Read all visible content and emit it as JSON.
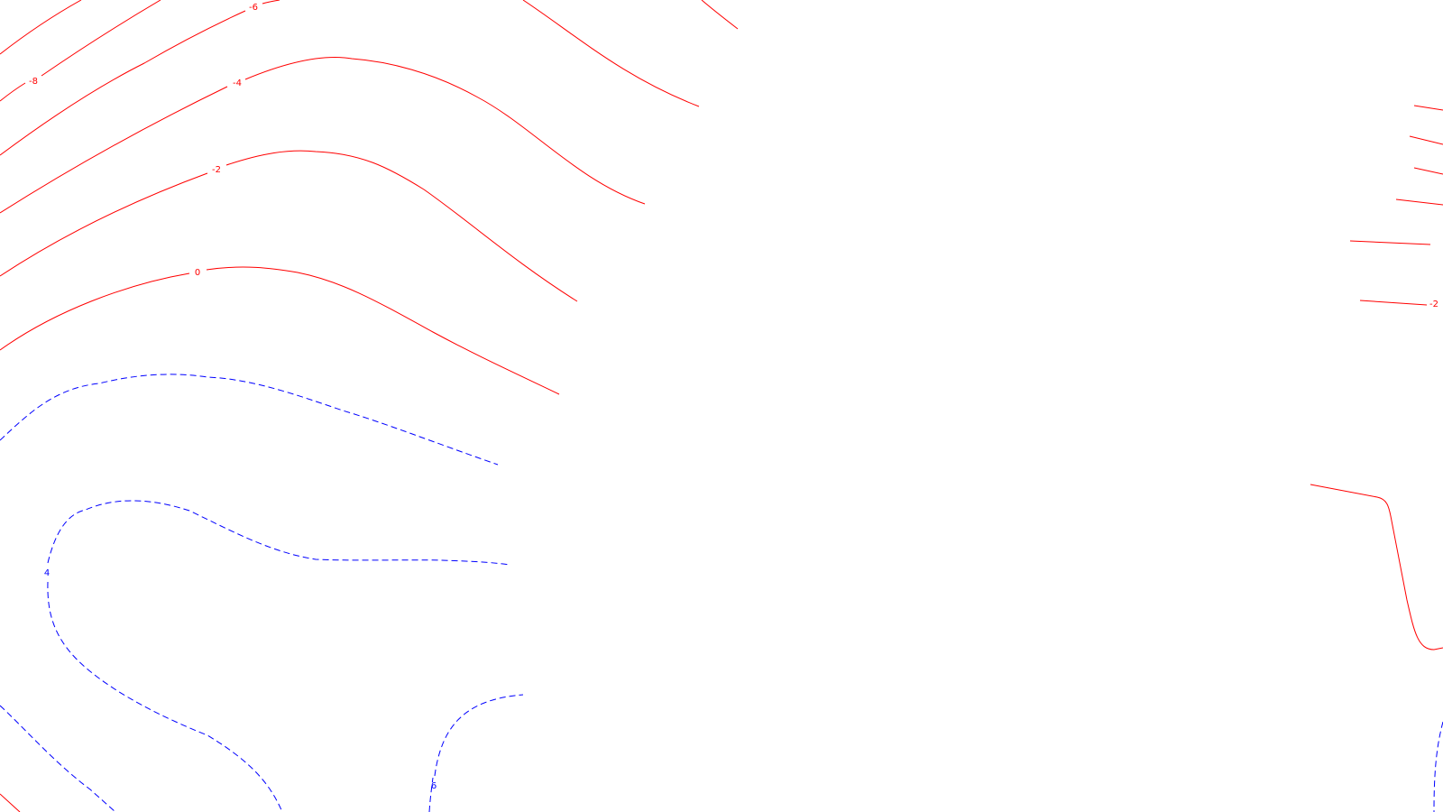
{
  "map": {
    "colors": {
      "negative_contour": "#ff0000",
      "positive_contour": "#0000ff",
      "background": "#ffffff"
    },
    "negative_line_style": "solid",
    "positive_line_style": "dashed",
    "contour_labels": {
      "minus_eight": "-8",
      "minus_six": "-6",
      "minus_four": "-4",
      "minus_two": "-2",
      "zero": "0",
      "minus_two_east": "-2",
      "four": "4",
      "six": "6"
    }
  }
}
